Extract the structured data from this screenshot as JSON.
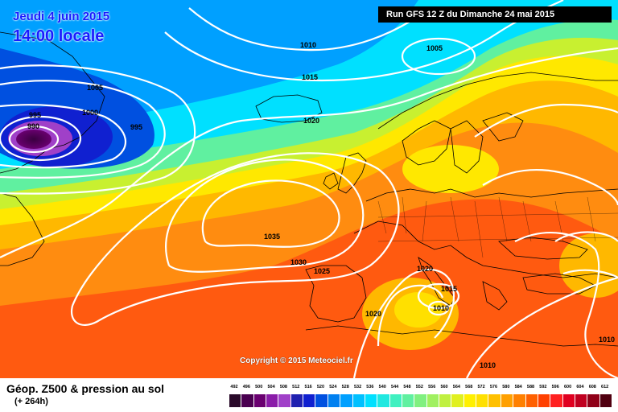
{
  "map": {
    "date_title": "Jeudi 4 juin 2015",
    "time_title": "14:00 locale",
    "run_info": "Run GFS 12 Z du Dimanche 24 mai 2015",
    "copyright": "Copyright © 2015 Meteociel.fr",
    "isobar_labels": [
      "995",
      "990",
      "1005",
      "1000",
      "995",
      "1010",
      "1015",
      "1005",
      "1020",
      "1035",
      "1030",
      "1025",
      "1020",
      "1015",
      "1010",
      "1020",
      "1010",
      "1010"
    ]
  },
  "legend": {
    "title": "Géop. Z500 & pression au sol",
    "forecast_hour": "(+ 264h)",
    "scale": [
      "492",
      "496",
      "500",
      "504",
      "508",
      "512",
      "516",
      "520",
      "524",
      "528",
      "532",
      "536",
      "540",
      "544",
      "548",
      "552",
      "556",
      "560",
      "564",
      "568",
      "572",
      "576",
      "580",
      "584",
      "588",
      "592",
      "596",
      "600",
      "604",
      "608",
      "612"
    ],
    "colors": [
      "#2a0a2a",
      "#4a0050",
      "#6a0070",
      "#8a1ca8",
      "#a040c8",
      "#2020b0",
      "#1020d0",
      "#0050e0",
      "#0080f0",
      "#00a0ff",
      "#00c0ff",
      "#00e0ff",
      "#20e8e0",
      "#40f0c0",
      "#60f0a0",
      "#80f080",
      "#a0f060",
      "#c0f040",
      "#e0f020",
      "#fff000",
      "#ffe000",
      "#ffc000",
      "#ffa000",
      "#ff8000",
      "#ff6000",
      "#ff4000",
      "#ff2020",
      "#e00020",
      "#c00020",
      "#900018",
      "#500010"
    ]
  }
}
